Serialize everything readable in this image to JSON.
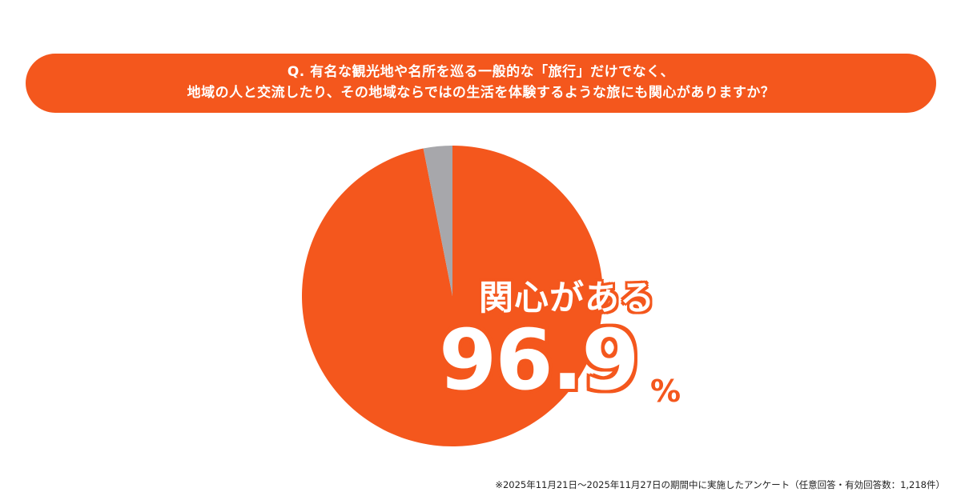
{
  "question": {
    "line1": "Q. 有名な観光地や名所を巡る一般的な「旅行」だけでなく、",
    "line2": "地域の人と交流したり、その地域ならではの生活を体験するような旅にも関心がありますか？"
  },
  "chart_data": {
    "type": "pie",
    "slices": [
      {
        "label": "関心がある",
        "value": 96.9,
        "color": "#f4571d"
      },
      {
        "label": "",
        "value": 3.1,
        "color": "#a7a7ab"
      }
    ],
    "highlight": {
      "label": "関心がある",
      "value_text": "96.9",
      "unit": "%"
    }
  },
  "footnote": "※2025年11月21日〜2025年11月27日の期間中に実施したアンケート（任意回答・有効回答数：1,218件）"
}
